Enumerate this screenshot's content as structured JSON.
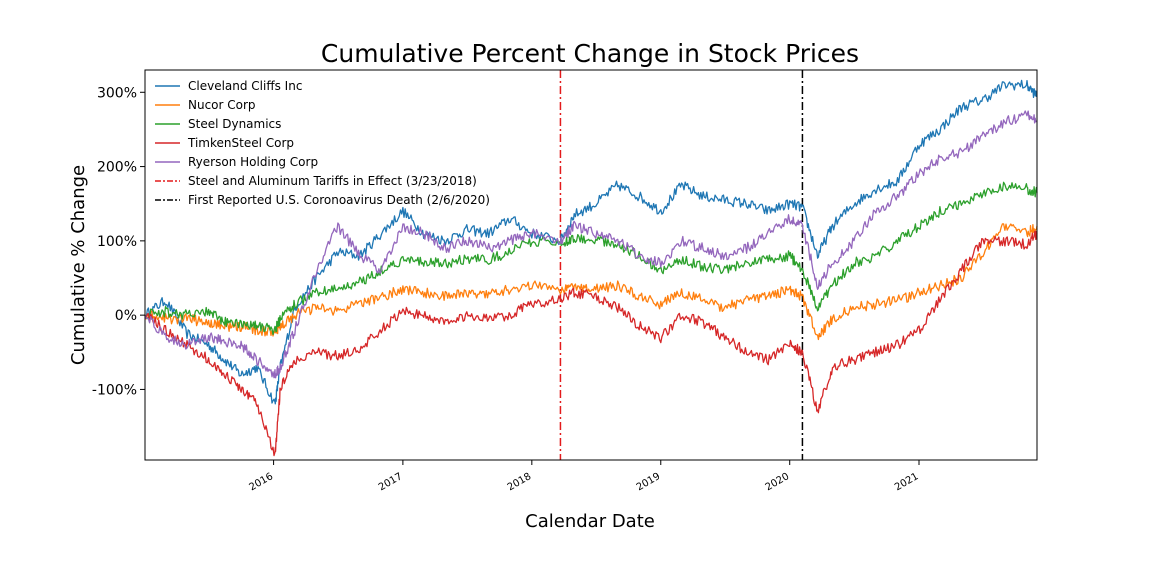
{
  "chart_data": {
    "type": "line",
    "title": "Cumulative Percent Change in Stock Prices",
    "xlabel": "Calendar Date",
    "ylabel": "Cumulative % Change",
    "x_range": [
      "2015-01-02",
      "2021-12-01"
    ],
    "ylim": [
      -195,
      330
    ],
    "y_ticks": [
      -100,
      0,
      100,
      200,
      300
    ],
    "y_tick_labels": [
      "-100%",
      "0%",
      "100%",
      "200%",
      "300%"
    ],
    "x_ticks": [
      "2016-01-01",
      "2017-01-01",
      "2018-01-01",
      "2019-01-01",
      "2020-01-01",
      "2021-01-01"
    ],
    "x_tick_labels": [
      "2016",
      "2017",
      "2018",
      "2019",
      "2020",
      "2021"
    ],
    "grid": false,
    "legend_position": "upper-left",
    "x": [
      "2015-01-02",
      "2015-03-01",
      "2015-05-01",
      "2015-07-01",
      "2015-08-15",
      "2015-10-01",
      "2015-11-15",
      "2016-01-05",
      "2016-01-20",
      "2016-03-01",
      "2016-05-01",
      "2016-07-01",
      "2016-09-01",
      "2016-11-01",
      "2017-01-01",
      "2017-03-01",
      "2017-05-01",
      "2017-07-01",
      "2017-09-01",
      "2017-11-01",
      "2018-01-01",
      "2018-03-23",
      "2018-05-01",
      "2018-07-01",
      "2018-09-01",
      "2018-11-01",
      "2019-01-01",
      "2019-03-01",
      "2019-05-01",
      "2019-07-01",
      "2019-09-01",
      "2019-11-01",
      "2020-01-01",
      "2020-02-06",
      "2020-03-20",
      "2020-05-01",
      "2020-07-01",
      "2020-09-01",
      "2020-11-01",
      "2021-01-01",
      "2021-03-01",
      "2021-05-01",
      "2021-07-01",
      "2021-09-01",
      "2021-11-01",
      "2021-12-01"
    ],
    "series": [
      {
        "name": "Cleveland Cliffs Inc",
        "color": "#1f77b4",
        "values": [
          0,
          20,
          -25,
          -40,
          -60,
          -80,
          -70,
          -120,
          -70,
          10,
          50,
          85,
          80,
          110,
          140,
          110,
          100,
          115,
          110,
          130,
          110,
          100,
          135,
          150,
          175,
          160,
          140,
          175,
          160,
          155,
          150,
          140,
          150,
          145,
          80,
          120,
          150,
          170,
          180,
          230,
          250,
          280,
          290,
          310,
          310,
          295
        ]
      },
      {
        "name": "Nucor Corp",
        "color": "#ff7f0e",
        "values": [
          0,
          -5,
          -5,
          -10,
          -15,
          -15,
          -20,
          -25,
          -15,
          0,
          10,
          5,
          15,
          25,
          35,
          30,
          25,
          30,
          30,
          35,
          40,
          35,
          40,
          35,
          40,
          25,
          15,
          30,
          20,
          10,
          20,
          25,
          35,
          25,
          -30,
          -5,
          10,
          15,
          20,
          30,
          40,
          50,
          85,
          120,
          110,
          120
        ]
      },
      {
        "name": "Steel Dynamics",
        "color": "#2ca02c",
        "values": [
          0,
          5,
          0,
          5,
          -10,
          -10,
          -15,
          -20,
          -5,
          15,
          30,
          35,
          45,
          60,
          75,
          70,
          70,
          75,
          75,
          85,
          100,
          95,
          105,
          100,
          95,
          80,
          60,
          75,
          65,
          60,
          70,
          75,
          80,
          60,
          10,
          40,
          70,
          80,
          100,
          120,
          140,
          150,
          165,
          175,
          170,
          165
        ]
      },
      {
        "name": "TimkenSteel Corp",
        "color": "#d62728",
        "values": [
          0,
          -20,
          -40,
          -60,
          -80,
          -100,
          -120,
          -190,
          -100,
          -60,
          -50,
          -55,
          -45,
          -20,
          5,
          0,
          -10,
          0,
          -5,
          0,
          15,
          20,
          30,
          25,
          10,
          -15,
          -30,
          0,
          -10,
          -30,
          -50,
          -60,
          -40,
          -50,
          -130,
          -70,
          -60,
          -50,
          -40,
          -20,
          20,
          60,
          100,
          100,
          95,
          110
        ]
      },
      {
        "name": "Ryerson Holding Corp",
        "color": "#9467bd",
        "values": [
          0,
          -30,
          -40,
          -30,
          -35,
          -40,
          -60,
          -80,
          -70,
          -20,
          60,
          120,
          80,
          60,
          120,
          110,
          90,
          100,
          90,
          100,
          110,
          100,
          120,
          110,
          100,
          80,
          70,
          100,
          90,
          80,
          90,
          110,
          130,
          120,
          40,
          70,
          100,
          140,
          160,
          190,
          210,
          220,
          240,
          260,
          270,
          260
        ]
      }
    ],
    "vlines": [
      {
        "name": "Steel and Aluminum Tariffs in Effect (3/23/2018)",
        "x": "2018-03-23",
        "color": "#e31a1c"
      },
      {
        "name": "First Reported U.S. Coronoavirus Death (2/6/2020)",
        "x": "2020-02-06",
        "color": "#000000"
      }
    ]
  }
}
